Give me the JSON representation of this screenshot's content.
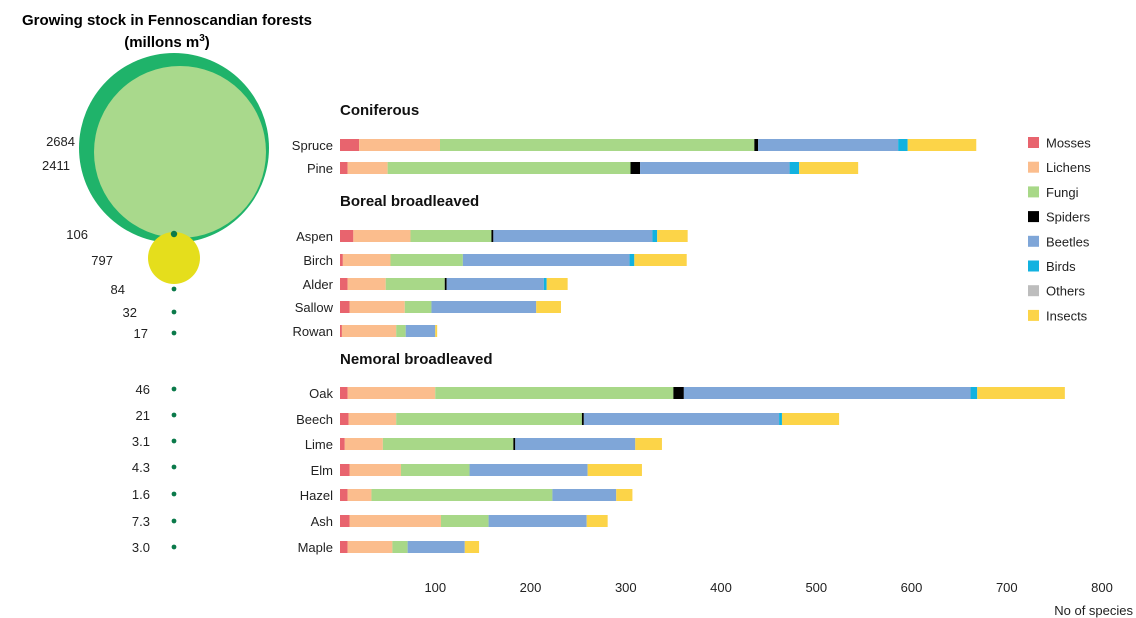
{
  "chart_data": [
    {
      "type": "bubble",
      "title_line1": "Growing stock in Fennoscandian forests",
      "title_line2_main": "(millons m",
      "title_line2_sup": "3",
      "title_line2_close": ")",
      "big_circles": [
        {
          "label": "2684",
          "value": 2684,
          "color": "#1fb36a"
        },
        {
          "label": "2411",
          "value": 2411,
          "color": "#a9d98c"
        },
        {
          "label": "797",
          "value": 797,
          "color": "#e5de1c"
        }
      ],
      "dots": [
        {
          "label": "106",
          "value": 106
        },
        {
          "label": "84",
          "value": 84
        },
        {
          "label": "32",
          "value": 32
        },
        {
          "label": "17",
          "value": 17
        },
        {
          "label": "46",
          "value": 46
        },
        {
          "label": "21",
          "value": 21
        },
        {
          "label": "3.1",
          "value": 3.1
        },
        {
          "label": "4.3",
          "value": 4.3
        },
        {
          "label": "1.6",
          "value": 1.6
        },
        {
          "label": "7.3",
          "value": 7.3
        },
        {
          "label": "3.0",
          "value": 3.0
        }
      ],
      "dot_color": "#0b7a4a"
    },
    {
      "type": "bar",
      "orientation": "horizontal",
      "stacked": true,
      "xlabel": "No of species",
      "xlim": [
        0,
        800
      ],
      "xticks": [
        100,
        200,
        300,
        400,
        500,
        600,
        700,
        800
      ],
      "legend_position": "right",
      "series": [
        {
          "name": "Mosses",
          "color": "#e8646e"
        },
        {
          "name": "Lichens",
          "color": "#fbbd8d"
        },
        {
          "name": "Fungi",
          "color": "#a8d888"
        },
        {
          "name": "Spiders",
          "color": "#000000"
        },
        {
          "name": "Beetles",
          "color": "#7fa6d8"
        },
        {
          "name": "Birds",
          "color": "#12b2e0"
        },
        {
          "name": "Others",
          "color": "#bdbdbd"
        },
        {
          "name": "Insects",
          "color": "#fcd448"
        }
      ],
      "groups": [
        {
          "title": "Coniferous",
          "rows": [
            {
              "name": "Spruce",
              "values": [
                20,
                85,
                330,
                4,
                147,
                10,
                0,
                72
              ]
            },
            {
              "name": "Pine",
              "values": [
                8,
                42,
                255,
                10,
                157,
                10,
                0,
                62
              ]
            }
          ]
        },
        {
          "title": "Boreal broadleaved",
          "rows": [
            {
              "name": "Aspen",
              "values": [
                14,
                60,
                85,
                2,
                167,
                5,
                0,
                32
              ]
            },
            {
              "name": "Birch",
              "values": [
                3,
                50,
                76,
                0,
                175,
                5,
                0,
                55
              ]
            },
            {
              "name": "Alder",
              "values": [
                8,
                40,
                62,
                2,
                102,
                3,
                0,
                22
              ]
            },
            {
              "name": "Sallow",
              "values": [
                10,
                58,
                28,
                0,
                110,
                0,
                0,
                26
              ]
            },
            {
              "name": "Rowan",
              "values": [
                2,
                57,
                10,
                0,
                31,
                0,
                0,
                2
              ]
            }
          ]
        },
        {
          "title": "Nemoral broadleaved",
          "rows": [
            {
              "name": "Oak",
              "values": [
                8,
                92,
                250,
                11,
                301,
                7,
                0,
                92
              ]
            },
            {
              "name": "Beech",
              "values": [
                9,
                50,
                195,
                2,
                205,
                3,
                0,
                60
              ]
            },
            {
              "name": "Lime",
              "values": [
                5,
                40,
                137,
                2,
                126,
                0,
                0,
                28
              ]
            },
            {
              "name": "Elm",
              "values": [
                10,
                54,
                72,
                0,
                124,
                0,
                0,
                57
              ]
            },
            {
              "name": "Hazel",
              "values": [
                8,
                25,
                190,
                0,
                67,
                0,
                0,
                17
              ]
            },
            {
              "name": "Ash",
              "values": [
                10,
                96,
                50,
                0,
                103,
                0,
                0,
                22
              ]
            },
            {
              "name": "Maple",
              "values": [
                8,
                47,
                16,
                0,
                60,
                0,
                0,
                15
              ]
            }
          ]
        }
      ]
    }
  ]
}
